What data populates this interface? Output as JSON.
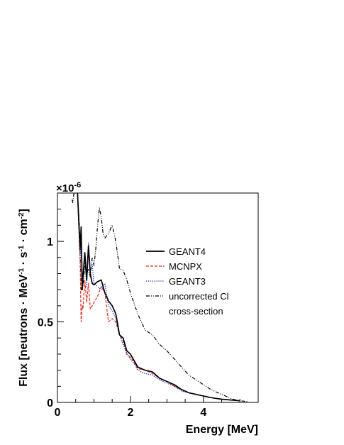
{
  "chart_data": {
    "type": "line",
    "xlabel": "Energy [MeV]",
    "ylabel": "Flux [neutrons · MeV-1 · s-1 · cm-2]",
    "ylabel_parts": {
      "base1": "Flux [neutrons · MeV",
      "sup1": "-1",
      "base2": " · s",
      "sup2": "-1",
      "base3": " · cm",
      "sup3": "-2",
      "base4": "]"
    },
    "y_multiplier": "×10-6",
    "y_multiplier_parts": {
      "base": "×10",
      "sup": "-6"
    },
    "xlim": [
      0,
      5.5
    ],
    "ylim": [
      0,
      1.3
    ],
    "x_ticks": [
      0,
      2,
      4
    ],
    "x_tick_labels": [
      "0",
      "2",
      "4"
    ],
    "y_ticks": [
      0,
      0.5,
      1
    ],
    "y_tick_labels": [
      "0",
      "0.5",
      "1"
    ],
    "grid": false,
    "legend_position": "upper-right",
    "legend": [
      "GEANT4",
      "MCNPX",
      "GEANT3",
      "uncorrected Cl",
      "cross-section"
    ],
    "series": [
      {
        "name": "GEANT4",
        "color": "#000000",
        "style": "solid",
        "x": [
          0.55,
          0.6,
          0.62,
          0.65,
          0.68,
          0.7,
          0.75,
          0.8,
          0.85,
          0.9,
          0.95,
          1.0,
          1.1,
          1.2,
          1.3,
          1.4,
          1.5,
          1.6,
          1.7,
          1.8,
          1.9,
          2.0,
          2.1,
          2.2,
          2.4,
          2.6,
          2.8,
          3.0,
          3.2,
          3.4,
          3.6,
          3.8,
          4.0,
          4.2,
          4.5,
          5.0
        ],
        "y": [
          1.3,
          1.05,
          0.95,
          1.09,
          0.7,
          0.78,
          0.93,
          0.76,
          0.97,
          0.8,
          0.74,
          0.73,
          0.75,
          0.76,
          0.68,
          0.63,
          0.6,
          0.55,
          0.42,
          0.4,
          0.32,
          0.3,
          0.26,
          0.22,
          0.2,
          0.19,
          0.15,
          0.13,
          0.11,
          0.08,
          0.06,
          0.05,
          0.04,
          0.03,
          0.02,
          0.01
        ]
      },
      {
        "name": "MCNPX",
        "color": "#e8291c",
        "style": "dashed",
        "x": [
          0.55,
          0.6,
          0.62,
          0.65,
          0.68,
          0.7,
          0.75,
          0.8,
          0.85,
          0.9,
          0.95,
          1.0,
          1.1,
          1.2,
          1.3,
          1.4,
          1.5,
          1.6,
          1.7,
          1.8,
          1.9,
          2.0,
          2.1,
          2.2,
          2.4,
          2.6,
          2.8,
          3.0,
          3.2,
          3.4,
          3.6,
          3.8,
          4.0,
          4.2,
          4.5,
          5.0
        ],
        "y": [
          1.3,
          1.0,
          0.9,
          0.5,
          0.6,
          0.58,
          0.76,
          0.62,
          0.74,
          0.58,
          0.6,
          0.62,
          0.66,
          0.72,
          0.68,
          0.5,
          0.52,
          0.5,
          0.42,
          0.38,
          0.3,
          0.28,
          0.25,
          0.21,
          0.2,
          0.18,
          0.15,
          0.13,
          0.1,
          0.08,
          0.06,
          0.05,
          0.04,
          0.03,
          0.02,
          0.01
        ]
      },
      {
        "name": "GEANT3",
        "color": "#2233cc",
        "style": "dotted",
        "x": [
          0.55,
          0.6,
          0.62,
          0.65,
          0.68,
          0.7,
          0.75,
          0.8,
          0.85,
          0.9,
          0.95,
          1.0,
          1.1,
          1.2,
          1.3,
          1.4,
          1.5,
          1.6,
          1.7,
          1.8,
          1.9,
          2.0,
          2.1,
          2.2,
          2.4,
          2.6,
          2.8,
          3.0,
          3.2,
          3.4,
          3.6,
          3.8,
          4.0,
          4.2,
          4.5,
          5.0
        ],
        "y": [
          1.3,
          1.02,
          0.9,
          0.98,
          0.72,
          0.76,
          0.9,
          0.72,
          0.99,
          0.82,
          0.86,
          0.74,
          0.72,
          0.7,
          0.74,
          0.6,
          0.57,
          0.52,
          0.42,
          0.36,
          0.3,
          0.27,
          0.24,
          0.2,
          0.18,
          0.17,
          0.14,
          0.12,
          0.1,
          0.07,
          0.06,
          0.05,
          0.04,
          0.03,
          0.02,
          0.01
        ]
      },
      {
        "name": "uncorrected Cl cross-section",
        "color": "#000000",
        "style": "dashdot",
        "x": [
          0.4,
          0.42,
          0.45,
          0.5,
          0.55,
          0.6,
          0.65,
          0.7,
          0.75,
          0.8,
          0.85,
          0.9,
          0.95,
          1.0,
          1.05,
          1.1,
          1.15,
          1.2,
          1.25,
          1.3,
          1.4,
          1.5,
          1.6,
          1.7,
          1.8,
          1.9,
          2.0,
          2.2,
          2.4,
          2.6,
          2.8,
          3.0,
          3.2,
          3.4,
          3.6,
          3.8,
          4.0,
          4.2,
          4.4,
          4.6,
          4.8,
          5.0,
          5.2
        ],
        "y": [
          1.26,
          1.24,
          1.3,
          1.3,
          1.3,
          1.1,
          0.7,
          0.72,
          0.85,
          0.8,
          0.83,
          0.78,
          0.9,
          0.85,
          0.95,
          1.1,
          1.21,
          1.15,
          1.05,
          1.02,
          1.05,
          1.1,
          1.0,
          0.83,
          0.82,
          0.76,
          0.68,
          0.55,
          0.45,
          0.42,
          0.36,
          0.32,
          0.27,
          0.22,
          0.17,
          0.14,
          0.11,
          0.08,
          0.06,
          0.04,
          0.02,
          0.01,
          0.005
        ]
      }
    ]
  }
}
